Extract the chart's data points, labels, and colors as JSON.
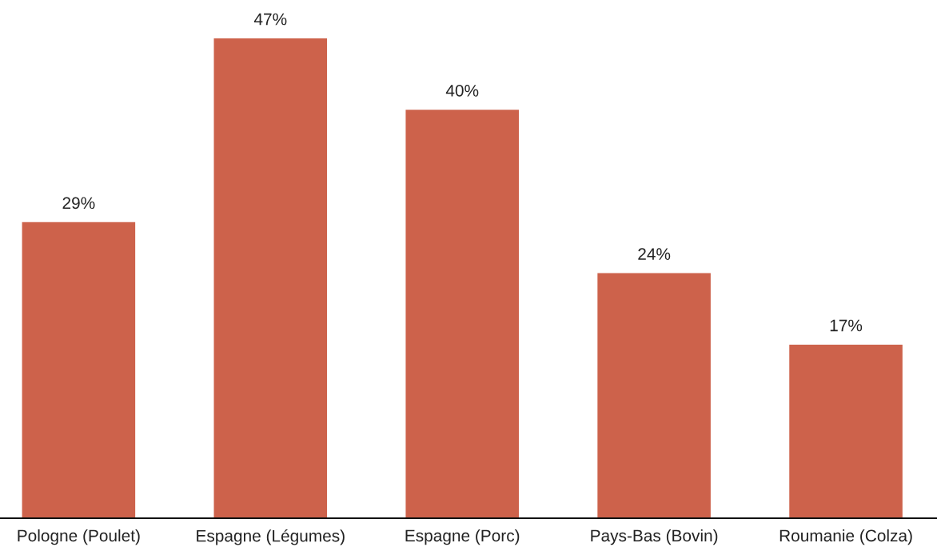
{
  "chart_data": {
    "type": "bar",
    "categories": [
      "Pologne (Poulet)",
      "Espagne (Légumes)",
      "Espagne (Porc)",
      "Pays-Bas (Bovin)",
      "Roumanie (Colza)"
    ],
    "values": [
      29,
      47,
      40,
      24,
      17
    ],
    "color": "#cd624b",
    "value_labels": [
      "29%",
      "47%",
      "40%",
      "24%",
      "17%"
    ],
    "grid": false,
    "legend": false
  }
}
